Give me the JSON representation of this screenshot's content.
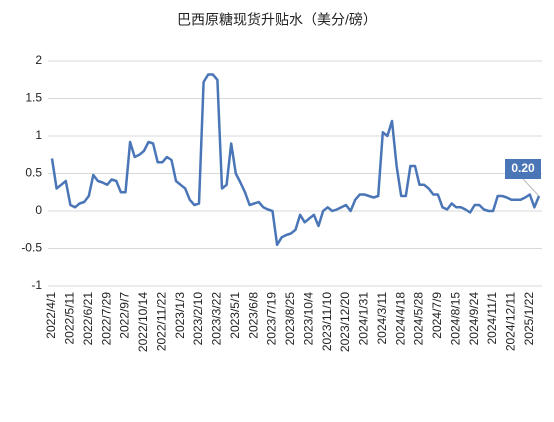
{
  "chart_data": {
    "type": "line",
    "title": "巴西原糖现货升贴水（美分/磅）",
    "categories": [
      "2022/4/1",
      null,
      null,
      null,
      "2022/5/11",
      null,
      null,
      null,
      "2022/6/21",
      null,
      null,
      null,
      "2022/7/29",
      null,
      null,
      null,
      "2022/9/7",
      null,
      null,
      null,
      "2022/10/14",
      null,
      null,
      null,
      "2022/11/22",
      null,
      null,
      null,
      "2023/1/3",
      null,
      null,
      null,
      "2023/2/10",
      null,
      null,
      null,
      "2023/3/22",
      null,
      null,
      null,
      "2023/5/1",
      null,
      null,
      null,
      "2023/6/8",
      null,
      null,
      null,
      "2023/7/19",
      null,
      null,
      null,
      "2023/8/25",
      null,
      null,
      null,
      "2023/10/4",
      null,
      null,
      null,
      "2023/11/10",
      null,
      null,
      null,
      "2023/12/20",
      null,
      null,
      null,
      "2024/1/31",
      null,
      null,
      null,
      "2024/3/11",
      null,
      null,
      null,
      "2024/4/18",
      null,
      null,
      null,
      "2024/5/28",
      null,
      null,
      null,
      "2024/7/9",
      null,
      null,
      null,
      "2024/8/15",
      null,
      null,
      null,
      "2024/9/24",
      null,
      null,
      null,
      "2024/11/1",
      null,
      null,
      null,
      "2024/12/11",
      null,
      null,
      null,
      "2025/1/22",
      null,
      null
    ],
    "values": [
      0.7,
      0.3,
      0.35,
      0.4,
      0.08,
      0.05,
      0.1,
      0.12,
      0.2,
      0.48,
      0.4,
      0.38,
      0.35,
      0.42,
      0.4,
      0.25,
      0.25,
      0.92,
      0.72,
      0.75,
      0.8,
      0.92,
      0.9,
      0.65,
      0.65,
      0.72,
      0.68,
      0.4,
      0.35,
      0.3,
      0.15,
      0.08,
      0.1,
      1.72,
      1.82,
      1.82,
      1.75,
      0.3,
      0.35,
      0.9,
      0.5,
      0.38,
      0.25,
      0.08,
      0.1,
      0.12,
      0.05,
      0.02,
      0.0,
      -0.45,
      -0.35,
      -0.32,
      -0.3,
      -0.25,
      -0.05,
      -0.15,
      -0.1,
      -0.05,
      -0.2,
      0.0,
      0.05,
      0.0,
      0.02,
      0.05,
      0.08,
      0.0,
      0.15,
      0.22,
      0.22,
      0.2,
      0.18,
      0.2,
      1.05,
      1.0,
      1.2,
      0.6,
      0.2,
      0.2,
      0.6,
      0.6,
      0.35,
      0.35,
      0.3,
      0.22,
      0.22,
      0.05,
      0.02,
      0.1,
      0.05,
      0.05,
      0.02,
      -0.02,
      0.08,
      0.08,
      0.02,
      0.0,
      0.0,
      0.2,
      0.2,
      0.18,
      0.15,
      0.15,
      0.15,
      0.18,
      0.22,
      0.05,
      0.2
    ],
    "value_labels": [
      null,
      null,
      null,
      null,
      null,
      null,
      null,
      null,
      null,
      null,
      null,
      null,
      null,
      null,
      null,
      null,
      null,
      null,
      null,
      null,
      null,
      null,
      null,
      null,
      null,
      null,
      null,
      null,
      null,
      null,
      null,
      null,
      null,
      null,
      null,
      null,
      null,
      null,
      null,
      null,
      null,
      null,
      null,
      null,
      null,
      null,
      null,
      null,
      null,
      null,
      null,
      null,
      null,
      null,
      null,
      null,
      null,
      null,
      null,
      null,
      null,
      null,
      null,
      null,
      null,
      null,
      null,
      null,
      null,
      null,
      null,
      null,
      null,
      null,
      null,
      null,
      null,
      null,
      null,
      null,
      null,
      null,
      null,
      null,
      null,
      null,
      null,
      null,
      null,
      null,
      null,
      null,
      null,
      null,
      null,
      null,
      null,
      null,
      null,
      null,
      null,
      null,
      null,
      null,
      null,
      null,
      "0.20"
    ],
    "color": "#4a76b8",
    "ylim": [
      -1,
      2
    ],
    "yticks": [
      -1,
      -0.5,
      0,
      0.5,
      1,
      1.5,
      2
    ],
    "grid": true
  }
}
